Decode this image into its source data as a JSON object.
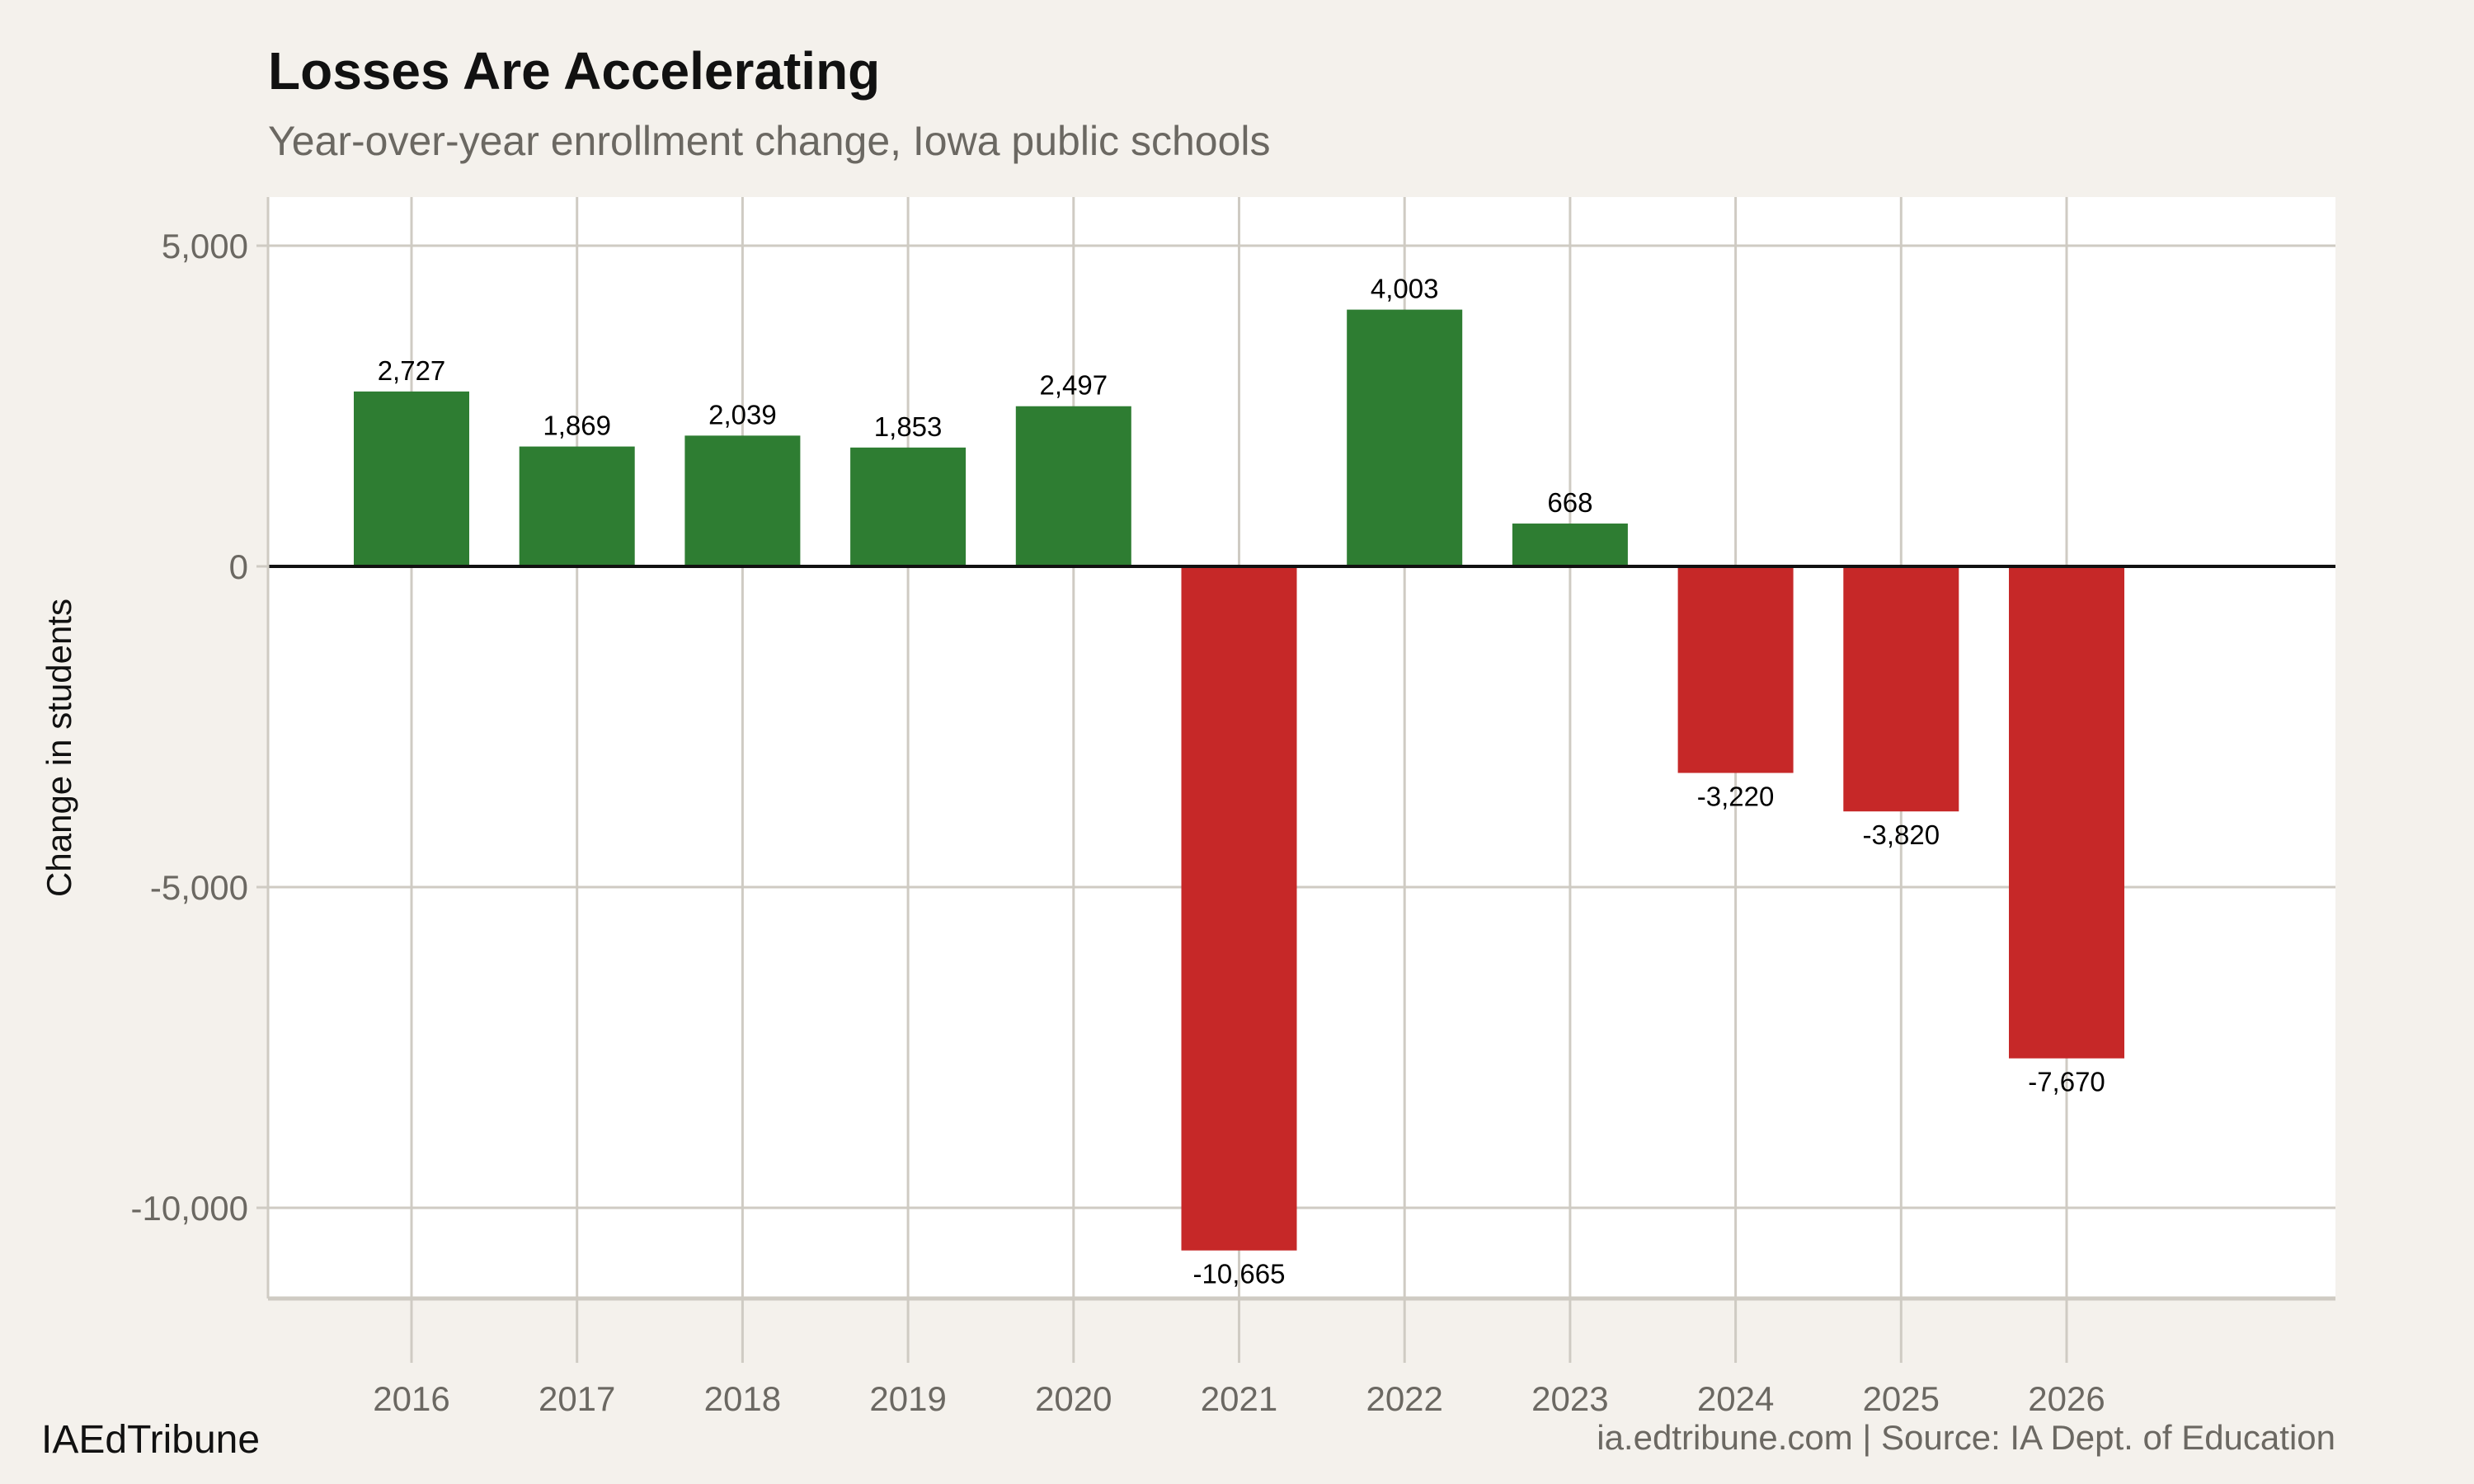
{
  "chart_data": {
    "type": "bar",
    "title": "Losses Are Accelerating",
    "subtitle": "Year-over-year enrollment change, Iowa public schools",
    "xlabel": "",
    "ylabel": "Change in students",
    "categories": [
      "2016",
      "2017",
      "2018",
      "2019",
      "2020",
      "2021",
      "2022",
      "2023",
      "2024",
      "2025",
      "2026"
    ],
    "values": [
      2727,
      1869,
      2039,
      1853,
      2497,
      -10665,
      4003,
      668,
      -3220,
      -3820,
      -7670
    ],
    "data_labels": [
      "2,727",
      "1,869",
      "2,039",
      "1,853",
      "2,497",
      "-10,665",
      "4,003",
      "668",
      "-3,220",
      "-3,820",
      "-7,670"
    ],
    "ylim": [
      -11500,
      5750
    ],
    "yticks": [
      5000,
      0,
      -5000,
      -10000
    ],
    "ytick_labels": [
      "5,000",
      "0",
      "-5,000",
      "-10,000"
    ],
    "grid": true,
    "colors": {
      "positive": "#2e7d32",
      "negative": "#c62828",
      "background": "#f4f1ec",
      "panel": "#ffffff",
      "grid": "#cfcbc3"
    }
  },
  "footer": {
    "brand": "IAEdTribune",
    "source": "ia.edtribune.com | Source: IA Dept. of Education"
  }
}
